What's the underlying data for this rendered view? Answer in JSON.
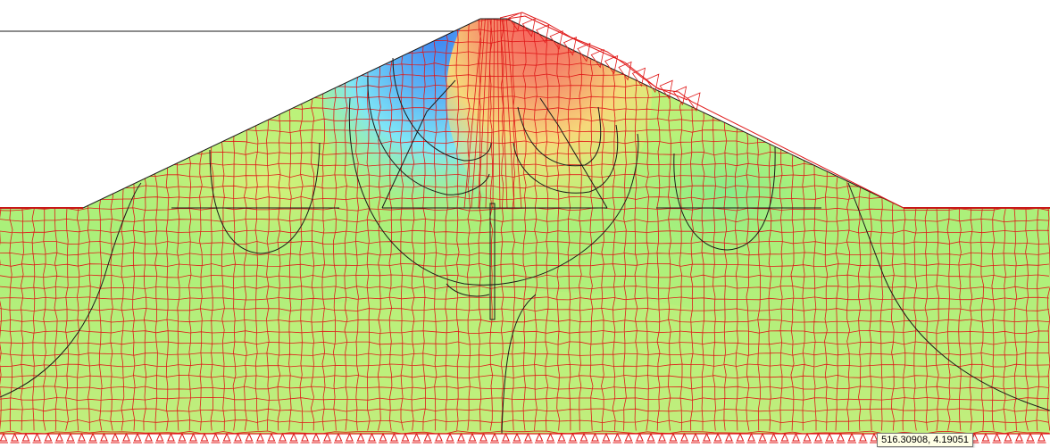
{
  "viewport": {
    "cursor_coordinates": "516.30908, 4.19051"
  },
  "colors": {
    "background": "#ffffff",
    "mesh_lines": "#e01818",
    "contour_lines": "#1a1a1a",
    "deformed_mesh": "#e01818",
    "contour_scale": [
      "#4a8ef0",
      "#7fe0f7",
      "#8ef0a0",
      "#c7f27a",
      "#f5e17a",
      "#f58a6a",
      "#f56464"
    ]
  },
  "icons": {
    "support": "triangle-fixed-support-icon"
  }
}
